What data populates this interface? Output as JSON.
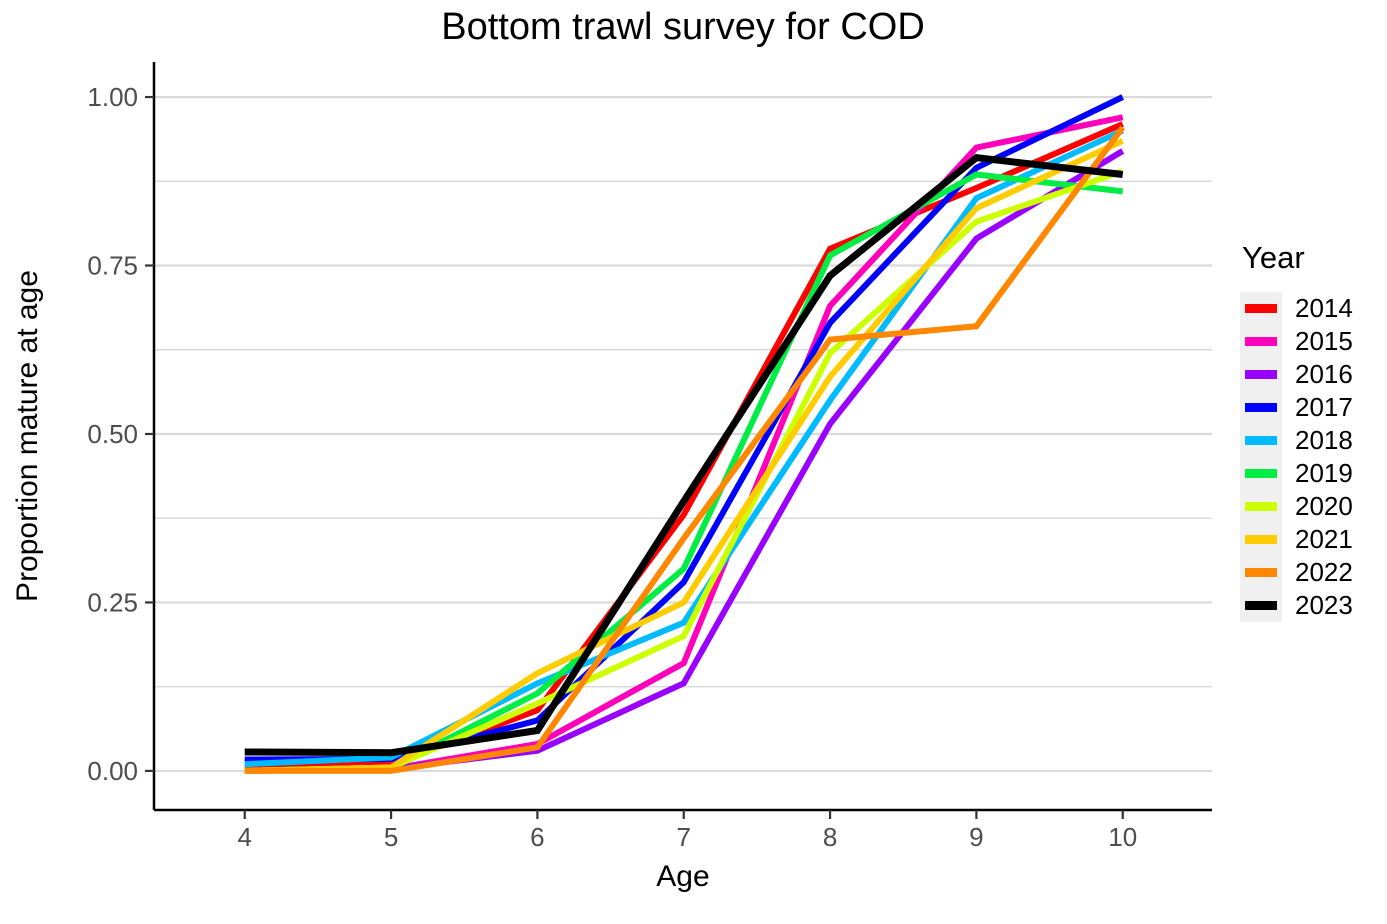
{
  "chart_data": {
    "type": "line",
    "title": "Bottom trawl survey for COD",
    "xlabel": "Age",
    "ylabel": "Proportion mature at age",
    "legend_title": "Year",
    "legend_position": "right",
    "grid": true,
    "x": [
      4,
      5,
      6,
      7,
      8,
      9,
      10
    ],
    "xlim": [
      3.38,
      10.61
    ],
    "ylim": [
      -0.058,
      1.052
    ],
    "x_ticks": [
      "4",
      "5",
      "6",
      "7",
      "8",
      "9",
      "10"
    ],
    "x_tick_values": [
      4,
      5,
      6,
      7,
      8,
      9,
      10
    ],
    "y_ticks": [
      "0.00",
      "0.25",
      "0.50",
      "0.75",
      "1.00"
    ],
    "y_tick_values": [
      0,
      0.25,
      0.5,
      0.75,
      1.0
    ],
    "y_minor_tick_values": [
      0.125,
      0.375,
      0.625,
      0.875
    ],
    "series": [
      {
        "name": "2014",
        "color": "#FF0000",
        "width": 6,
        "values": [
          0.005,
          0.01,
          0.09,
          0.38,
          0.775,
          0.865,
          0.96
        ]
      },
      {
        "name": "2015",
        "color": "#FF00BB",
        "width": 6,
        "values": [
          0.0,
          0.003,
          0.04,
          0.16,
          0.69,
          0.925,
          0.97
        ]
      },
      {
        "name": "2016",
        "color": "#9900FF",
        "width": 6,
        "values": [
          0.0,
          0.003,
          0.03,
          0.13,
          0.515,
          0.79,
          0.92
        ]
      },
      {
        "name": "2017",
        "color": "#0000FF",
        "width": 6,
        "values": [
          0.017,
          0.018,
          0.075,
          0.28,
          0.665,
          0.895,
          1.0
        ]
      },
      {
        "name": "2018",
        "color": "#00BBFF",
        "width": 6,
        "values": [
          0.01,
          0.02,
          0.13,
          0.22,
          0.55,
          0.85,
          0.95
        ]
      },
      {
        "name": "2019",
        "color": "#00EE44",
        "width": 6,
        "values": [
          0.0,
          0.005,
          0.115,
          0.3,
          0.765,
          0.885,
          0.86
        ]
      },
      {
        "name": "2020",
        "color": "#CCFF00",
        "width": 6,
        "values": [
          0.0,
          0.005,
          0.1,
          0.2,
          0.62,
          0.815,
          0.89
        ]
      },
      {
        "name": "2021",
        "color": "#FFCC00",
        "width": 6,
        "values": [
          0.0,
          0.005,
          0.145,
          0.25,
          0.585,
          0.835,
          0.935
        ]
      },
      {
        "name": "2022",
        "color": "#FF8800",
        "width": 6,
        "values": [
          0.0,
          0.0,
          0.035,
          0.345,
          0.64,
          0.66,
          0.955
        ]
      },
      {
        "name": "2023",
        "color": "#000000",
        "width": 7,
        "values": [
          0.028,
          0.027,
          0.06,
          0.4,
          0.735,
          0.91,
          0.885
        ]
      }
    ],
    "styles": {
      "grid_color": "#D9D9D9",
      "axis_color": "#000000",
      "tick_color": "#333333",
      "tick_label_color": "#4D4D4D",
      "legend_key_bg": "#F0F0F0",
      "panel_bg": "#FFFFFF"
    }
  }
}
